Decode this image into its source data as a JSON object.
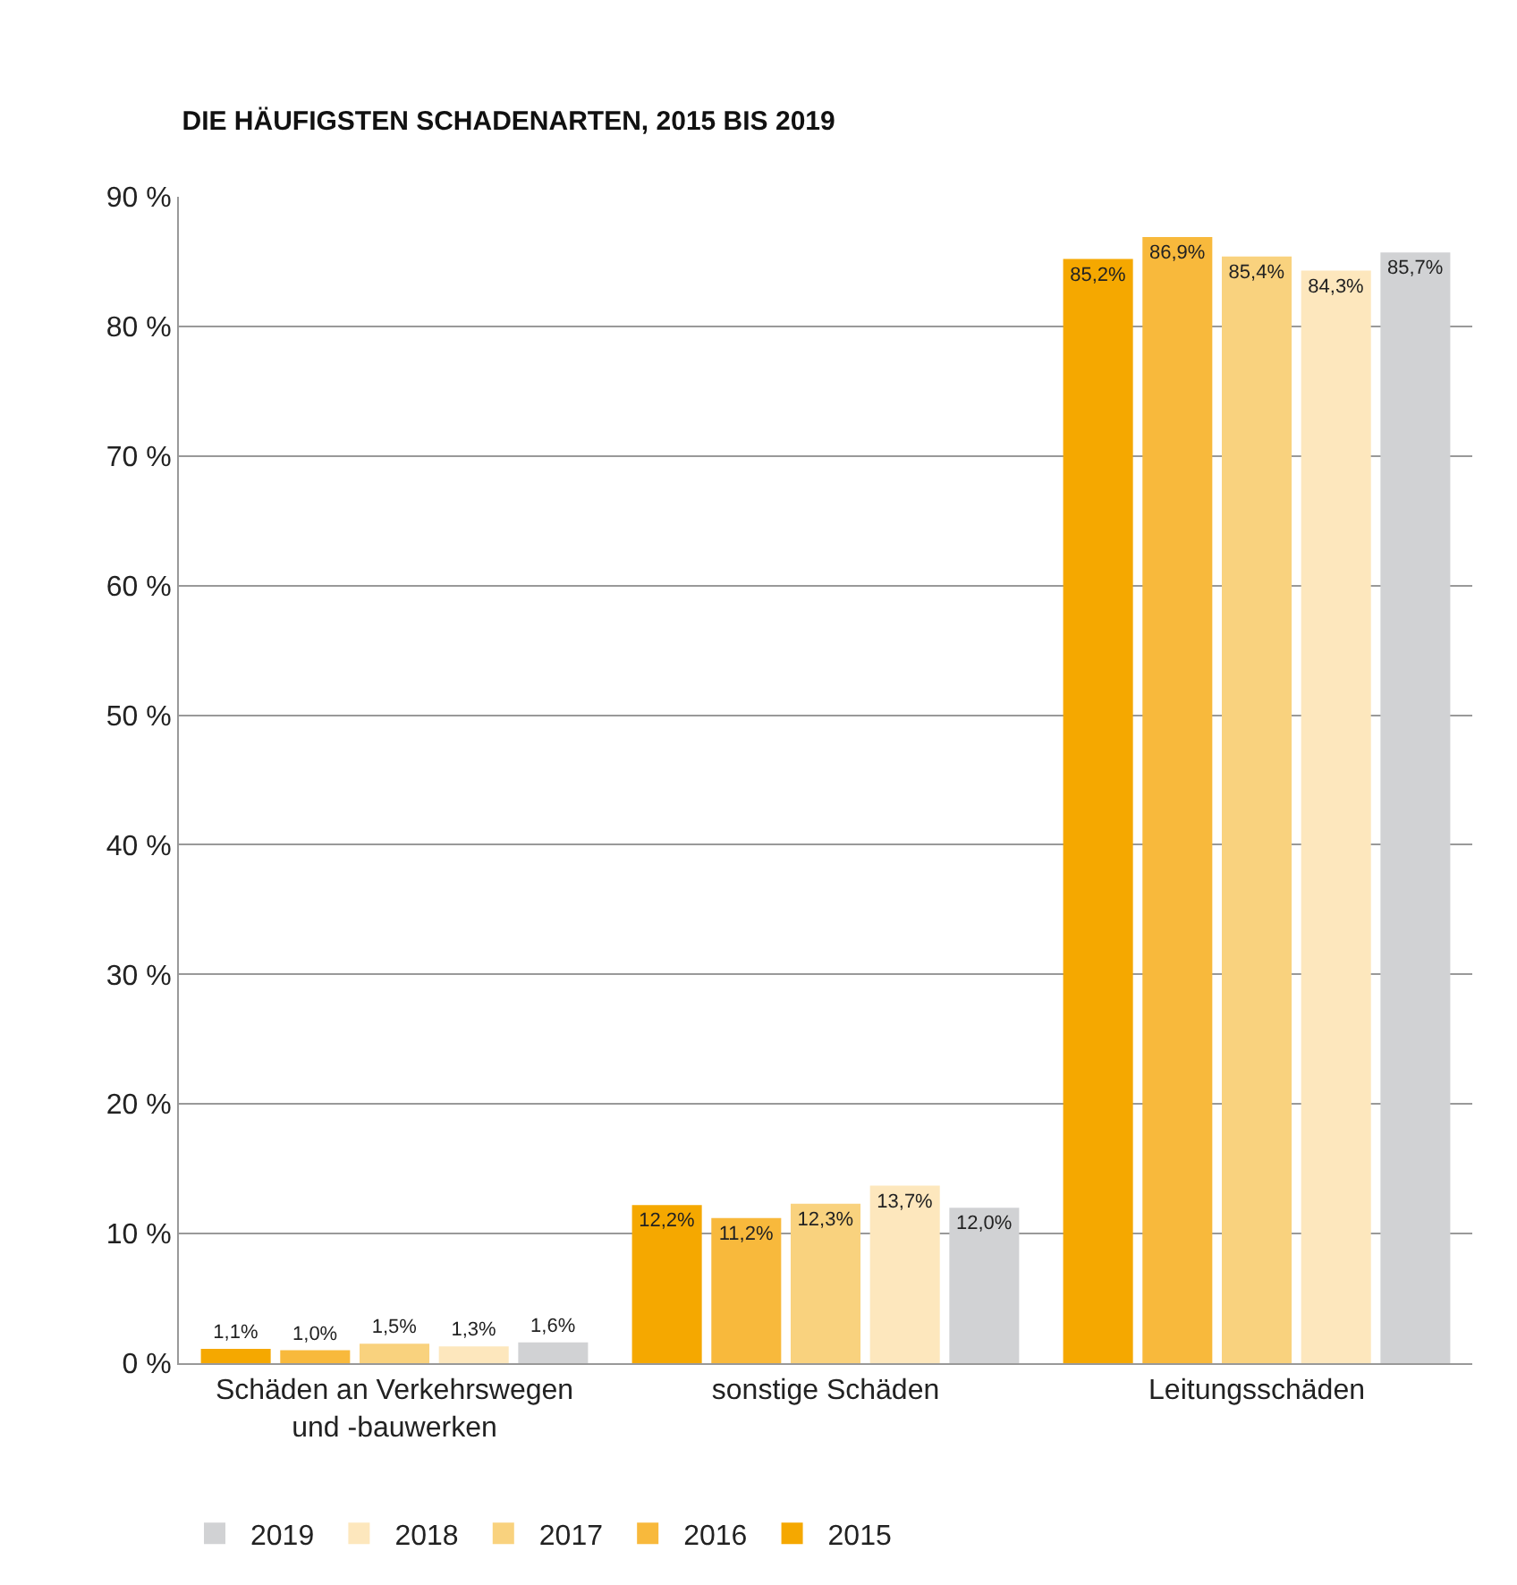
{
  "chart_data": {
    "type": "bar",
    "title": "DIE HÄUFIGSTEN SCHADENARTEN, 2015 BIS 2019",
    "categories": [
      "Schäden an Verkehrswegen\nund -bauwerken",
      "sonstige Schäden",
      "Leitungsschäden"
    ],
    "series": [
      {
        "name": "2015",
        "color": "#f5a800",
        "values": [
          1.1,
          12.2,
          85.2
        ],
        "value_labels": [
          "1,1%",
          "12,2%",
          "85,2%"
        ]
      },
      {
        "name": "2016",
        "color": "#f8b93c",
        "values": [
          1.0,
          11.2,
          86.9
        ],
        "value_labels": [
          "1,0%",
          "11,2%",
          "86,9%"
        ]
      },
      {
        "name": "2017",
        "color": "#f9d27e",
        "values": [
          1.5,
          12.3,
          85.4
        ],
        "value_labels": [
          "1,5%",
          "12,3%",
          "85,4%"
        ]
      },
      {
        "name": "2018",
        "color": "#fde7bd",
        "values": [
          1.3,
          13.7,
          84.3
        ],
        "value_labels": [
          "1,3%",
          "13,7%",
          "84,3%"
        ]
      },
      {
        "name": "2019",
        "color": "#d1d2d4",
        "values": [
          1.6,
          12.0,
          85.7
        ],
        "value_labels": [
          "1,6%",
          "12,0%",
          "85,7%"
        ]
      }
    ],
    "ylim": [
      0,
      90
    ],
    "yticks": [
      {
        "value": 0,
        "label": "0 %"
      },
      {
        "value": 10,
        "label": "10 %"
      },
      {
        "value": 20,
        "label": "20 %"
      },
      {
        "value": 30,
        "label": "30 %"
      },
      {
        "value": 40,
        "label": "40 %"
      },
      {
        "value": 50,
        "label": "50 %"
      },
      {
        "value": 60,
        "label": "60 %"
      },
      {
        "value": 70,
        "label": "70 %"
      },
      {
        "value": 80,
        "label": "80 %"
      },
      {
        "value": 90,
        "label": "90 %"
      }
    ],
    "grid": "y",
    "legend": "bottom"
  }
}
